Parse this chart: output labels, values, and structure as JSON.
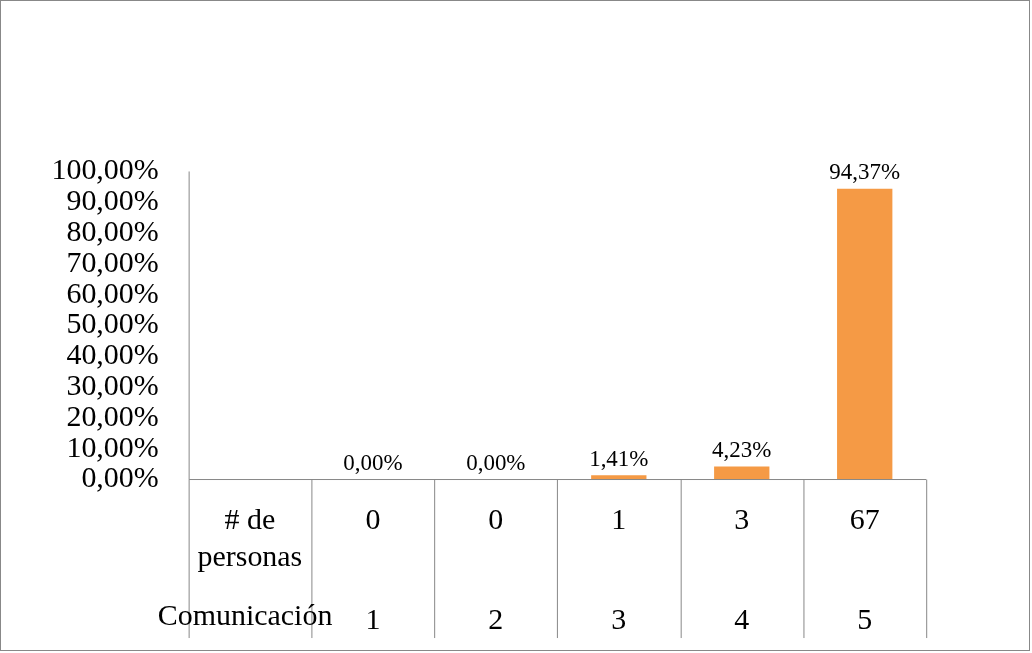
{
  "chart_data": {
    "type": "bar",
    "xlabel": "Comunicación",
    "categories": [
      "1",
      "2",
      "3",
      "4",
      "5"
    ],
    "values": [
      0,
      0,
      1.41,
      4.23,
      94.37
    ],
    "value_labels": [
      "0,00%",
      "0,00%",
      "1,41%",
      "4,23%",
      "94,37%"
    ],
    "color": "#f59a45",
    "ylim": [
      0,
      100
    ],
    "yticks": [
      {
        "value": 0,
        "label": "0,00%"
      },
      {
        "value": 10,
        "label": "10,00%"
      },
      {
        "value": 20,
        "label": "20,00%"
      },
      {
        "value": 30,
        "label": "30,00%"
      },
      {
        "value": 40,
        "label": "40,00%"
      },
      {
        "value": 50,
        "label": "50,00%"
      },
      {
        "value": 60,
        "label": "60,00%"
      },
      {
        "value": 70,
        "label": "70,00%"
      },
      {
        "value": 80,
        "label": "80,00%"
      },
      {
        "value": 90,
        "label": "90,00%"
      },
      {
        "value": 100,
        "label": "100,00%"
      }
    ],
    "grid": false,
    "legend": false,
    "annotations": [
      "# de personas",
      "0",
      "0",
      "1",
      "3",
      "67"
    ]
  }
}
